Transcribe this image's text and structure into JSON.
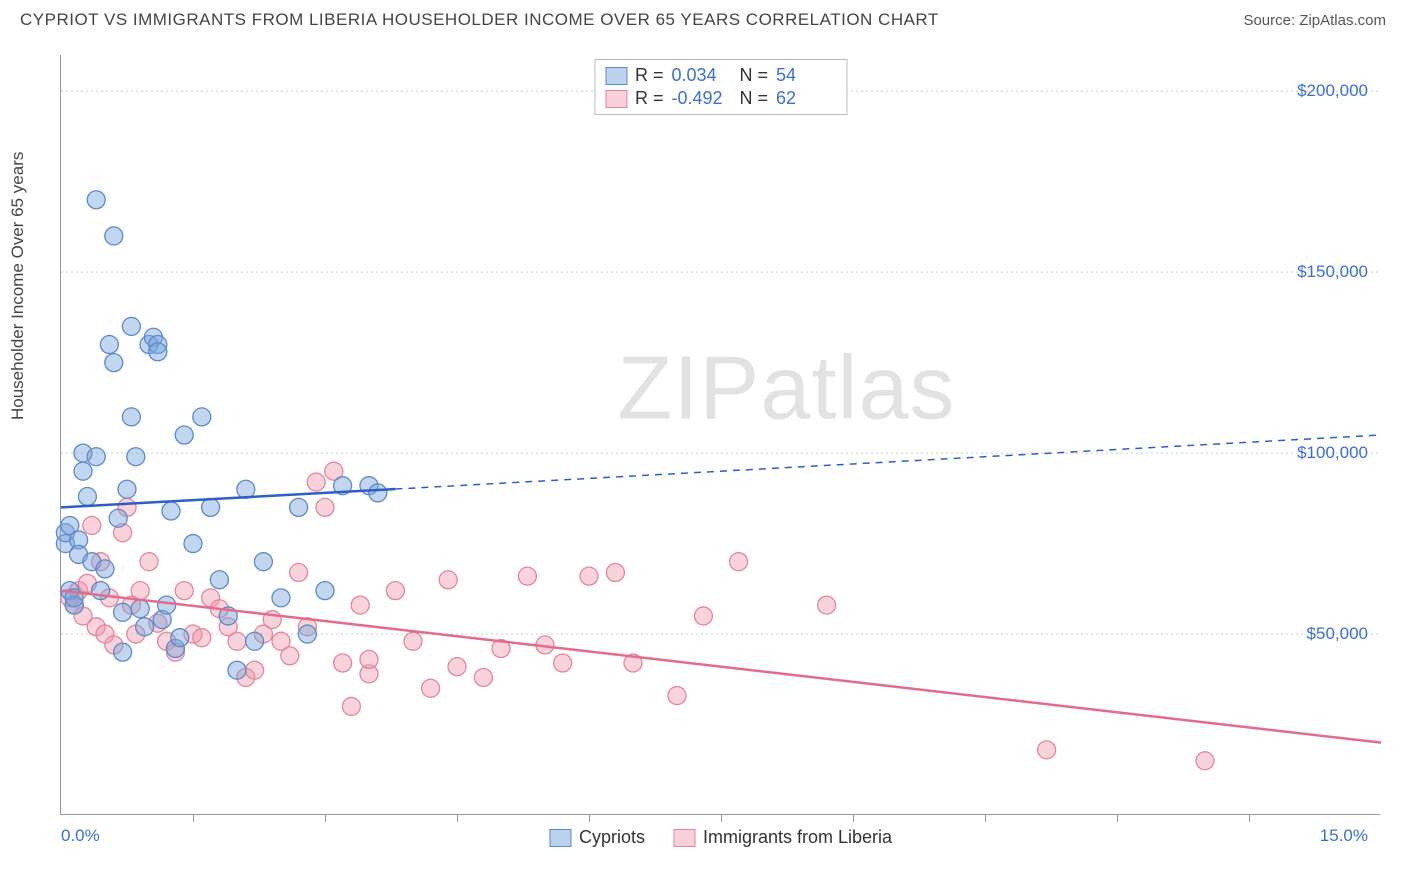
{
  "header": {
    "title": "CYPRIOT VS IMMIGRANTS FROM LIBERIA HOUSEHOLDER INCOME OVER 65 YEARS CORRELATION CHART",
    "source": "Source: ZipAtlas.com"
  },
  "chart": {
    "type": "scatter",
    "ylabel": "Householder Income Over 65 years",
    "xlim": [
      0,
      15
    ],
    "ylim": [
      0,
      210000
    ],
    "x_axis_label_left": "0.0%",
    "x_axis_label_right": "15.0%",
    "y_ticks": [
      {
        "v": 50000,
        "label": "$50,000"
      },
      {
        "v": 100000,
        "label": "$100,000"
      },
      {
        "v": 150000,
        "label": "$150,000"
      },
      {
        "v": 200000,
        "label": "$200,000"
      }
    ],
    "x_tick_positions": [
      1.5,
      3.0,
      4.5,
      6.0,
      7.5,
      9.0,
      10.5,
      12.0,
      13.5
    ],
    "grid_color": "#cccccc",
    "background_color": "#ffffff",
    "watermark": "ZIPatlas",
    "legend_top": [
      {
        "swatch": "blue",
        "r_label": "R =",
        "r": "0.034",
        "n_label": "N =",
        "n": "54"
      },
      {
        "swatch": "pink",
        "r_label": "R =",
        "r": "-0.492",
        "n_label": "N =",
        "n": "62"
      }
    ],
    "legend_bottom": [
      {
        "swatch": "blue",
        "label": "Cypriots"
      },
      {
        "swatch": "pink",
        "label": "Immigrants from Liberia"
      }
    ],
    "series": {
      "cypriots": {
        "color_fill": "rgba(120,165,220,0.45)",
        "color_stroke": "#5a8bc9",
        "marker_radius": 9,
        "points": [
          [
            0.05,
            75000
          ],
          [
            0.05,
            78000
          ],
          [
            0.1,
            80000
          ],
          [
            0.1,
            62000
          ],
          [
            0.15,
            58000
          ],
          [
            0.15,
            60000
          ],
          [
            0.2,
            76000
          ],
          [
            0.2,
            72000
          ],
          [
            0.25,
            100000
          ],
          [
            0.25,
            95000
          ],
          [
            0.3,
            88000
          ],
          [
            0.35,
            70000
          ],
          [
            0.4,
            99000
          ],
          [
            0.4,
            170000
          ],
          [
            0.45,
            62000
          ],
          [
            0.5,
            68000
          ],
          [
            0.55,
            130000
          ],
          [
            0.6,
            125000
          ],
          [
            0.6,
            160000
          ],
          [
            0.65,
            82000
          ],
          [
            0.7,
            56000
          ],
          [
            0.7,
            45000
          ],
          [
            0.75,
            90000
          ],
          [
            0.8,
            110000
          ],
          [
            0.85,
            99000
          ],
          [
            0.9,
            57000
          ],
          [
            0.95,
            52000
          ],
          [
            1.0,
            130000
          ],
          [
            1.05,
            132000
          ],
          [
            1.1,
            130000
          ],
          [
            1.1,
            128000
          ],
          [
            1.15,
            54000
          ],
          [
            1.2,
            58000
          ],
          [
            1.25,
            84000
          ],
          [
            1.3,
            46000
          ],
          [
            1.35,
            49000
          ],
          [
            1.4,
            105000
          ],
          [
            1.5,
            75000
          ],
          [
            1.6,
            110000
          ],
          [
            1.7,
            85000
          ],
          [
            1.8,
            65000
          ],
          [
            1.9,
            55000
          ],
          [
            2.0,
            40000
          ],
          [
            2.1,
            90000
          ],
          [
            2.2,
            48000
          ],
          [
            2.3,
            70000
          ],
          [
            2.5,
            60000
          ],
          [
            2.7,
            85000
          ],
          [
            2.8,
            50000
          ],
          [
            3.0,
            62000
          ],
          [
            3.2,
            91000
          ],
          [
            3.5,
            91000
          ],
          [
            3.6,
            89000
          ],
          [
            0.8,
            135000
          ]
        ],
        "trend": {
          "y_at_x0": 85000,
          "y_at_xmax": 105000,
          "solid_until_x": 3.8,
          "stroke": "#2b5fc7",
          "stroke_width": 2.5
        }
      },
      "liberia": {
        "color_fill": "rgba(240,150,170,0.42)",
        "color_stroke": "#e3869c",
        "marker_radius": 9,
        "points": [
          [
            0.1,
            60000
          ],
          [
            0.15,
            58000
          ],
          [
            0.2,
            62000
          ],
          [
            0.25,
            55000
          ],
          [
            0.3,
            64000
          ],
          [
            0.35,
            80000
          ],
          [
            0.4,
            52000
          ],
          [
            0.45,
            70000
          ],
          [
            0.5,
            50000
          ],
          [
            0.55,
            60000
          ],
          [
            0.6,
            47000
          ],
          [
            0.7,
            78000
          ],
          [
            0.75,
            85000
          ],
          [
            0.8,
            58000
          ],
          [
            0.85,
            50000
          ],
          [
            0.9,
            62000
          ],
          [
            1.0,
            70000
          ],
          [
            1.1,
            53000
          ],
          [
            1.2,
            48000
          ],
          [
            1.3,
            45000
          ],
          [
            1.4,
            62000
          ],
          [
            1.5,
            50000
          ],
          [
            1.6,
            49000
          ],
          [
            1.7,
            60000
          ],
          [
            1.8,
            57000
          ],
          [
            1.9,
            52000
          ],
          [
            2.0,
            48000
          ],
          [
            2.1,
            38000
          ],
          [
            2.2,
            40000
          ],
          [
            2.3,
            50000
          ],
          [
            2.4,
            54000
          ],
          [
            2.5,
            48000
          ],
          [
            2.6,
            44000
          ],
          [
            2.7,
            67000
          ],
          [
            2.8,
            52000
          ],
          [
            2.9,
            92000
          ],
          [
            3.0,
            85000
          ],
          [
            3.1,
            95000
          ],
          [
            3.2,
            42000
          ],
          [
            3.3,
            30000
          ],
          [
            3.4,
            58000
          ],
          [
            3.5,
            39000
          ],
          [
            3.5,
            43000
          ],
          [
            3.8,
            62000
          ],
          [
            4.0,
            48000
          ],
          [
            4.2,
            35000
          ],
          [
            4.4,
            65000
          ],
          [
            4.5,
            41000
          ],
          [
            4.8,
            38000
          ],
          [
            5.0,
            46000
          ],
          [
            5.3,
            66000
          ],
          [
            5.5,
            47000
          ],
          [
            5.7,
            42000
          ],
          [
            6.0,
            66000
          ],
          [
            6.3,
            67000
          ],
          [
            6.5,
            42000
          ],
          [
            7.0,
            33000
          ],
          [
            7.3,
            55000
          ],
          [
            7.7,
            70000
          ],
          [
            8.7,
            58000
          ],
          [
            11.2,
            18000
          ],
          [
            13.0,
            15000
          ]
        ],
        "trend": {
          "y_at_x0": 62000,
          "y_at_xmax": 20000,
          "solid_until_x": 15,
          "stroke": "#e56b8a",
          "stroke_width": 2.5
        }
      }
    }
  }
}
